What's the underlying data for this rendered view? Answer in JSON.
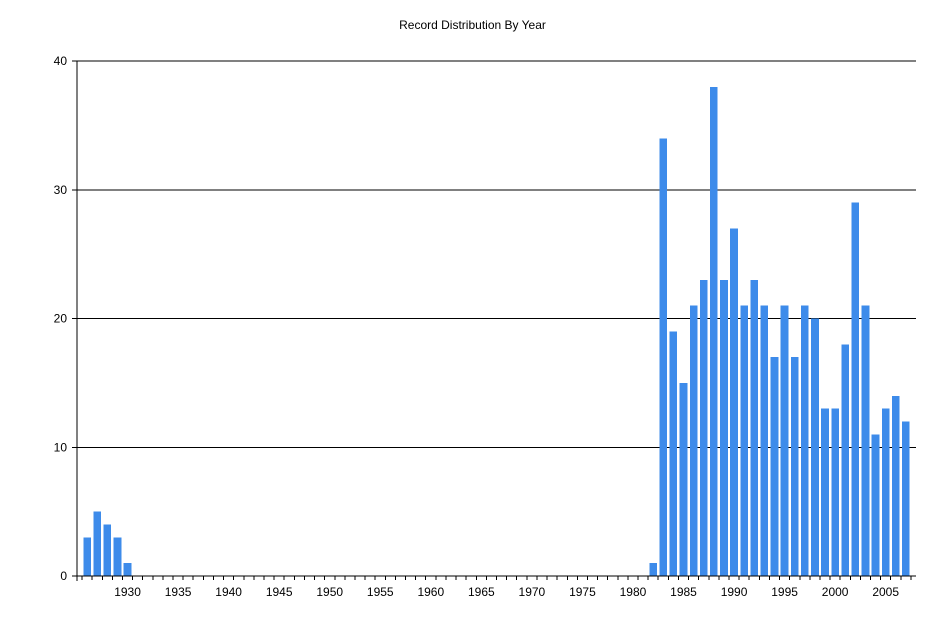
{
  "chart_data": {
    "type": "bar",
    "title": "Record Distribution By Year",
    "xlabel": "",
    "ylabel": "",
    "ylim": [
      0,
      40
    ],
    "xlim": [
      1925,
      2008
    ],
    "y_ticks": [
      0,
      10,
      20,
      30,
      40
    ],
    "x_ticks": [
      1930,
      1935,
      1940,
      1945,
      1950,
      1955,
      1960,
      1965,
      1970,
      1975,
      1980,
      1985,
      1990,
      1995,
      2000,
      2005
    ],
    "grid": "horizontal",
    "bar_color": "#3d8bea",
    "legend": "none",
    "x": [
      1926,
      1927,
      1928,
      1929,
      1930,
      1982,
      1983,
      1984,
      1985,
      1986,
      1987,
      1988,
      1989,
      1990,
      1991,
      1992,
      1993,
      1994,
      1995,
      1996,
      1997,
      1998,
      1999,
      2000,
      2001,
      2002,
      2003,
      2004,
      2005,
      2006,
      2007
    ],
    "values": [
      3,
      5,
      4,
      3,
      1,
      1,
      34,
      19,
      15,
      21,
      23,
      38,
      23,
      27,
      21,
      23,
      21,
      17,
      21,
      17,
      21,
      20,
      13,
      13,
      18,
      29,
      21,
      11,
      13,
      14,
      12
    ]
  }
}
